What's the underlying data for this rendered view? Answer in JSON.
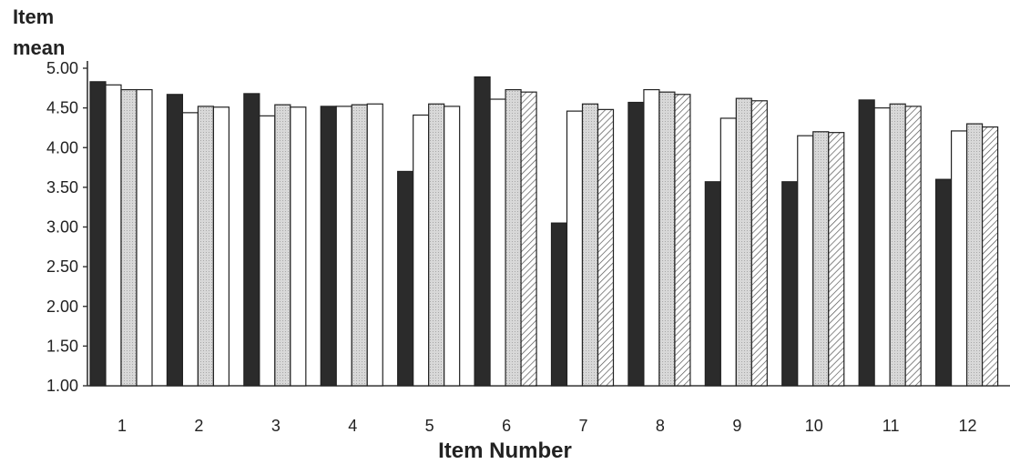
{
  "chart_data": {
    "type": "bar",
    "ylabel_lines": [
      "Item",
      "mean"
    ],
    "xlabel": "Item Number",
    "categories": [
      "1",
      "2",
      "3",
      "4",
      "5",
      "6",
      "7",
      "8",
      "9",
      "10",
      "11",
      "12"
    ],
    "yticks": [
      "1.00",
      "1.50",
      "2.00",
      "2.50",
      "3.00",
      "3.50",
      "4.00",
      "4.50",
      "5.00"
    ],
    "ylim": [
      1.0,
      5.0
    ],
    "grid": false,
    "legend": "none",
    "series": [
      {
        "fill": "#2b2b2b",
        "pattern": "solid-dark",
        "values": [
          4.83,
          4.67,
          4.68,
          4.52,
          3.7,
          4.89,
          3.05,
          4.57,
          3.57,
          3.57,
          4.6,
          3.6
        ]
      },
      {
        "fill": "#ffffff",
        "pattern": "white",
        "values": [
          4.79,
          4.44,
          4.4,
          4.52,
          4.41,
          4.61,
          4.46,
          4.73,
          4.37,
          4.15,
          4.5,
          4.21
        ]
      },
      {
        "fill": "#d6d6d6",
        "pattern": "light-gray",
        "values": [
          4.73,
          4.52,
          4.54,
          4.54,
          4.55,
          4.73,
          4.55,
          4.7,
          4.62,
          4.2,
          4.55,
          4.3
        ]
      },
      {
        "fill": "#ffffff",
        "pattern": "white",
        "values": [
          4.73,
          4.51,
          4.51,
          4.55,
          4.52,
          4.7,
          4.48,
          4.67,
          4.59,
          4.19,
          4.52,
          4.26
        ]
      }
    ]
  }
}
